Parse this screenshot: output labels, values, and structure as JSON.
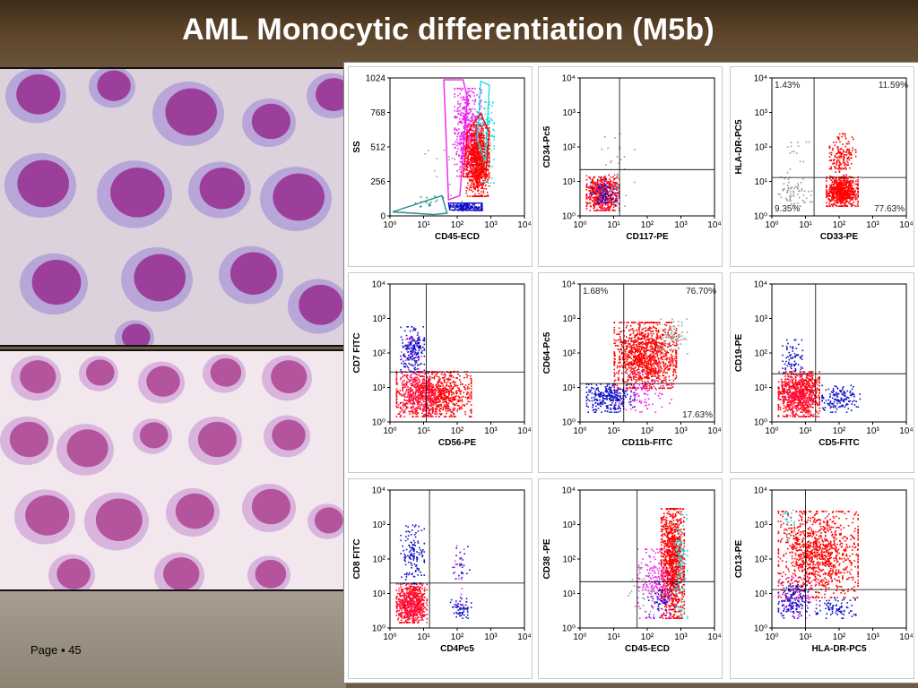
{
  "slide": {
    "title": "AML Monocytic differentiation (M5b)",
    "page_label": "Page ▪ 45"
  },
  "colors": {
    "monocytes": "#ff0000",
    "lymphocytes": "#1010c8",
    "granulocytes": "#ee22ee",
    "other": "#22dddd",
    "debris": "#2a8a8a",
    "background_events": "#999999",
    "pink": "#ff1a6a"
  },
  "chart_data": [
    {
      "type": "scatter",
      "id": "p1",
      "xlabel": "CD45-ECD",
      "ylabel": "SS",
      "x_scale": "log",
      "y_scale": "linear",
      "xlim": [
        1,
        10000
      ],
      "ylim": [
        0,
        1024
      ],
      "x_ticks": [
        "10⁰",
        "10¹",
        "10²",
        "10³",
        "10⁴"
      ],
      "y_ticks": [
        "0",
        "256",
        "512",
        "768",
        "1024"
      ],
      "y_tick_values": [
        0,
        256,
        512,
        768,
        1024
      ],
      "quadrant": null,
      "quadrant_labels": [],
      "gates": [
        {
          "color": "debris",
          "points": [
            [
              1.2,
              30
            ],
            [
              35,
              150
            ],
            [
              50,
              20
            ],
            [
              20,
              10
            ]
          ]
        },
        {
          "color": "granulocytes",
          "points": [
            [
              40,
              1010
            ],
            [
              150,
              1010
            ],
            [
              200,
              880
            ],
            [
              120,
              150
            ],
            [
              55,
              120
            ]
          ]
        },
        {
          "color": "other",
          "points": [
            [
              500,
              1000
            ],
            [
              900,
              970
            ],
            [
              700,
              400
            ],
            [
              400,
              560
            ]
          ]
        },
        {
          "color": "monocytes",
          "points": [
            [
              150,
              290
            ],
            [
              700,
              290
            ],
            [
              900,
              620
            ],
            [
              500,
              760
            ],
            [
              200,
              620
            ]
          ]
        },
        {
          "color": "lymphocytes",
          "points": [
            [
              55,
              95
            ],
            [
              550,
              95
            ],
            [
              560,
              40
            ],
            [
              60,
              45
            ]
          ]
        }
      ],
      "populations": [
        {
          "color": "granulocytes",
          "n": 550,
          "x": [
            80,
            500
          ],
          "y": [
            300,
            950
          ]
        },
        {
          "color": "other",
          "n": 200,
          "x": [
            300,
            1200
          ],
          "y": [
            250,
            850
          ]
        },
        {
          "color": "monocytes",
          "n": 900,
          "x": [
            180,
            850
          ],
          "y": [
            150,
            680
          ]
        },
        {
          "color": "lymphocytes",
          "n": 160,
          "x": [
            60,
            500
          ],
          "y": [
            45,
            95
          ]
        },
        {
          "color": "debris",
          "n": 15,
          "x": [
            5,
            40
          ],
          "y": [
            30,
            150
          ]
        },
        {
          "color": "background_events",
          "n": 20,
          "x": [
            10,
            200
          ],
          "y": [
            100,
            600
          ]
        }
      ]
    },
    {
      "type": "scatter",
      "id": "p2",
      "xlabel": "CD117-PE",
      "ylabel": "CD34-Pc5",
      "x_scale": "log",
      "y_scale": "log",
      "xlim": [
        1,
        10000
      ],
      "ylim": [
        1,
        10000
      ],
      "x_ticks": [
        "10⁰",
        "10¹",
        "10²",
        "10³",
        "10⁴"
      ],
      "y_ticks": [
        "10⁰",
        "10¹",
        "10²",
        "10³",
        "10⁴"
      ],
      "quadrant": {
        "x": 15,
        "y": 22
      },
      "quadrant_labels": [],
      "populations": [
        {
          "color": "monocytes",
          "n": 500,
          "x": [
            1.5,
            14
          ],
          "y": [
            1.5,
            14
          ]
        },
        {
          "color": "pink",
          "n": 90,
          "x": [
            1.5,
            14
          ],
          "y": [
            1.5,
            16
          ]
        },
        {
          "color": "lymphocytes",
          "n": 90,
          "x": [
            2,
            12
          ],
          "y": [
            2,
            12
          ]
        },
        {
          "color": "background_events",
          "n": 30,
          "x": [
            3,
            40
          ],
          "y": [
            2,
            250
          ]
        }
      ]
    },
    {
      "type": "scatter",
      "id": "p3",
      "xlabel": "CD33-PE",
      "ylabel": "HLA-DR-PC5",
      "x_scale": "log",
      "y_scale": "log",
      "xlim": [
        1,
        10000
      ],
      "ylim": [
        1,
        10000
      ],
      "x_ticks": [
        "10⁰",
        "10¹",
        "10²",
        "10³",
        "10⁴"
      ],
      "y_ticks": [
        "10⁰",
        "10¹",
        "10²",
        "10³",
        "10⁴"
      ],
      "quadrant": {
        "x": 18,
        "y": 13
      },
      "quadrant_labels": [
        {
          "pos": "top-left",
          "text": "1.43%"
        },
        {
          "pos": "top-right",
          "text": "11.59%"
        },
        {
          "pos": "bottom-left",
          "text": "9.35%"
        },
        {
          "pos": "bottom-right",
          "text": "77.63%"
        }
      ],
      "populations": [
        {
          "color": "monocytes",
          "n": 650,
          "x": [
            40,
            350
          ],
          "y": [
            2,
            14
          ]
        },
        {
          "color": "monocytes",
          "n": 170,
          "x": [
            50,
            300
          ],
          "y": [
            14,
            250
          ]
        },
        {
          "color": "background_events",
          "n": 70,
          "x": [
            1.5,
            15
          ],
          "y": [
            2,
            14
          ]
        },
        {
          "color": "background_events",
          "n": 15,
          "x": [
            2,
            15
          ],
          "y": [
            15,
            250
          ]
        }
      ]
    },
    {
      "type": "scatter",
      "id": "p4",
      "xlabel": "CD56-PE",
      "ylabel": "CD7 FITC",
      "x_scale": "log",
      "y_scale": "log",
      "xlim": [
        1,
        10000
      ],
      "ylim": [
        1,
        10000
      ],
      "x_ticks": [
        "10⁰",
        "10¹",
        "10²",
        "10³",
        "10⁴"
      ],
      "y_ticks": [
        "10⁰",
        "10¹",
        "10²",
        "10³",
        "10⁴"
      ],
      "quadrant": {
        "x": 12,
        "y": 28
      },
      "quadrant_labels": [],
      "populations": [
        {
          "color": "monocytes",
          "n": 900,
          "x": [
            1.5,
            250
          ],
          "y": [
            1.5,
            30
          ]
        },
        {
          "color": "pink",
          "n": 250,
          "x": [
            1.5,
            40
          ],
          "y": [
            1.5,
            30
          ]
        },
        {
          "color": "lymphocytes",
          "n": 200,
          "x": [
            2,
            10
          ],
          "y": [
            30,
            600
          ]
        },
        {
          "color": "granulocytes",
          "n": 30,
          "x": [
            2,
            10
          ],
          "y": [
            20,
            300
          ]
        }
      ]
    },
    {
      "type": "scatter",
      "id": "p5",
      "xlabel": "CD11b-FITC",
      "ylabel": "CD64-Pc5",
      "x_scale": "log",
      "y_scale": "log",
      "xlim": [
        1,
        10000
      ],
      "ylim": [
        1,
        10000
      ],
      "x_ticks": [
        "10⁰",
        "10¹",
        "10²",
        "10³",
        "10⁴"
      ],
      "y_ticks": [
        "10⁰",
        "10¹",
        "10²",
        "10³",
        "10⁴"
      ],
      "quadrant": {
        "x": 20,
        "y": 13
      },
      "quadrant_labels": [
        {
          "pos": "top-left",
          "text": "1.68%"
        },
        {
          "pos": "top-right",
          "text": "76.70%"
        },
        {
          "pos": "bottom-right",
          "text": "17.63%"
        }
      ],
      "populations": [
        {
          "color": "monocytes",
          "n": 1200,
          "x": [
            10,
            700
          ],
          "y": [
            10,
            800
          ]
        },
        {
          "color": "background_events",
          "n": 80,
          "x": [
            200,
            1500
          ],
          "y": [
            100,
            1000
          ]
        },
        {
          "color": "lymphocytes",
          "n": 280,
          "x": [
            1.5,
            40
          ],
          "y": [
            2,
            13
          ]
        },
        {
          "color": "granulocytes",
          "n": 100,
          "x": [
            10,
            500
          ],
          "y": [
            2,
            30
          ]
        }
      ]
    },
    {
      "type": "scatter",
      "id": "p6",
      "xlabel": "CD5-FITC",
      "ylabel": "CD19-PE",
      "x_scale": "log",
      "y_scale": "log",
      "xlim": [
        1,
        10000
      ],
      "ylim": [
        1,
        10000
      ],
      "x_ticks": [
        "10⁰",
        "10¹",
        "10²",
        "10³",
        "10⁴"
      ],
      "y_ticks": [
        "10⁰",
        "10¹",
        "10²",
        "10³",
        "10⁴"
      ],
      "quadrant": {
        "x": 20,
        "y": 25
      },
      "quadrant_labels": [],
      "populations": [
        {
          "color": "monocytes",
          "n": 700,
          "x": [
            1.5,
            25
          ],
          "y": [
            1.5,
            30
          ]
        },
        {
          "color": "pink",
          "n": 200,
          "x": [
            1.5,
            25
          ],
          "y": [
            1.5,
            30
          ]
        },
        {
          "color": "lymphocytes",
          "n": 150,
          "x": [
            30,
            400
          ],
          "y": [
            2,
            12
          ]
        },
        {
          "color": "lymphocytes",
          "n": 70,
          "x": [
            2,
            8
          ],
          "y": [
            25,
            250
          ]
        }
      ]
    },
    {
      "type": "scatter",
      "id": "p7",
      "xlabel": "CD4Pc5",
      "ylabel": "CD8 FITC",
      "x_scale": "log",
      "y_scale": "log",
      "xlim": [
        1,
        10000
      ],
      "ylim": [
        1,
        10000
      ],
      "x_ticks": [
        "10⁰",
        "10¹",
        "10²",
        "10³",
        "10⁴"
      ],
      "y_ticks": [
        "10⁰",
        "10¹",
        "10²",
        "10³",
        "10⁴"
      ],
      "quadrant": {
        "x": 15,
        "y": 20
      },
      "quadrant_labels": [],
      "populations": [
        {
          "color": "monocytes",
          "n": 500,
          "x": [
            1.5,
            12
          ],
          "y": [
            1.5,
            20
          ]
        },
        {
          "color": "pink",
          "n": 200,
          "x": [
            1.5,
            12
          ],
          "y": [
            1.5,
            20
          ]
        },
        {
          "color": "lymphocytes",
          "n": 140,
          "x": [
            2,
            10
          ],
          "y": [
            20,
            1000
          ]
        },
        {
          "color": "lymphocytes",
          "n": 60,
          "x": [
            60,
            250
          ],
          "y": [
            2,
            8
          ]
        },
        {
          "color": "lymphocytes",
          "n": 25,
          "x": [
            60,
            250
          ],
          "y": [
            20,
            300
          ]
        },
        {
          "color": "granulocytes",
          "n": 15,
          "x": [
            50,
            200
          ],
          "y": [
            5,
            300
          ]
        }
      ]
    },
    {
      "type": "scatter",
      "id": "p8",
      "xlabel": "CD45-ECD",
      "ylabel": "CD38 -PE",
      "x_scale": "log",
      "y_scale": "log",
      "xlim": [
        1,
        10000
      ],
      "ylim": [
        1,
        10000
      ],
      "x_ticks": [
        "10⁰",
        "10¹",
        "10²",
        "10³",
        "10⁴"
      ],
      "y_ticks": [
        "10⁰",
        "10¹",
        "10²",
        "10³",
        "10⁴"
      ],
      "quadrant": {
        "x": 50,
        "y": 22
      },
      "quadrant_labels": [],
      "populations": [
        {
          "color": "monocytes",
          "n": 1100,
          "x": [
            250,
            1200
          ],
          "y": [
            2,
            3000
          ]
        },
        {
          "color": "granulocytes",
          "n": 200,
          "x": [
            50,
            500
          ],
          "y": [
            2,
            200
          ]
        },
        {
          "color": "other",
          "n": 120,
          "x": [
            600,
            1500
          ],
          "y": [
            2,
            2000
          ]
        },
        {
          "color": "lymphocytes",
          "n": 60,
          "x": [
            100,
            700
          ],
          "y": [
            2,
            20
          ]
        },
        {
          "color": "background_events",
          "n": 30,
          "x": [
            20,
            300
          ],
          "y": [
            3,
            100
          ]
        }
      ]
    },
    {
      "type": "scatter",
      "id": "p9",
      "xlabel": "HLA-DR-PC5",
      "ylabel": "CD13-PE",
      "x_scale": "log",
      "y_scale": "log",
      "xlim": [
        1,
        10000
      ],
      "ylim": [
        1,
        10000
      ],
      "x_ticks": [
        "10⁰",
        "10¹",
        "10²",
        "10³",
        "10⁴"
      ],
      "y_ticks": [
        "10⁰",
        "10¹",
        "10²",
        "10³",
        "10⁴"
      ],
      "quadrant": {
        "x": 10,
        "y": 13
      },
      "quadrant_labels": [],
      "populations": [
        {
          "color": "monocytes",
          "n": 1100,
          "x": [
            1.5,
            350
          ],
          "y": [
            8,
            2500
          ]
        },
        {
          "color": "granulocytes",
          "n": 80,
          "x": [
            1.5,
            20
          ],
          "y": [
            2,
            30
          ]
        },
        {
          "color": "lymphocytes",
          "n": 150,
          "x": [
            1.5,
            12
          ],
          "y": [
            2,
            20
          ]
        },
        {
          "color": "lymphocytes",
          "n": 80,
          "x": [
            20,
            300
          ],
          "y": [
            2,
            8
          ]
        },
        {
          "color": "other",
          "n": 20,
          "x": [
            1.5,
            5
          ],
          "y": [
            300,
            3000
          ]
        }
      ]
    }
  ]
}
